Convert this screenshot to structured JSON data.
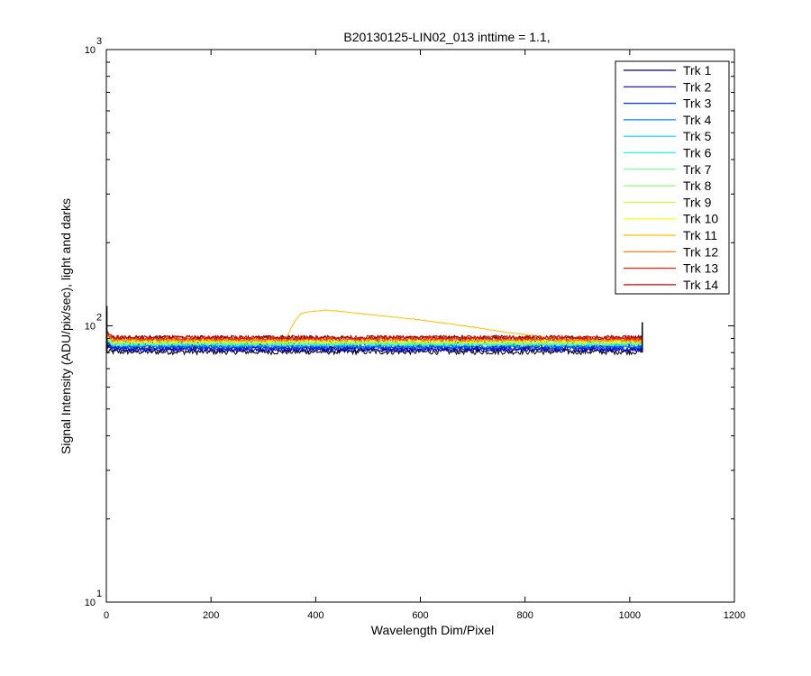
{
  "chart_data": {
    "type": "line",
    "title": "B20130125-LIN02_013 inttime = 1.1,",
    "xlabel": "Wavelength Dim/Pixel",
    "ylabel": "Signal Intensity (ADU/pix/sec), light and darks",
    "xlim": [
      0,
      1200
    ],
    "ylim": [
      10,
      1000
    ],
    "yscale": "log",
    "x_ticks": [
      0,
      200,
      400,
      600,
      800,
      1000,
      1200
    ],
    "x_tick_labels": [
      "0",
      "200",
      "400",
      "600",
      "800",
      "1000",
      "1200"
    ],
    "y_ticks": [
      10,
      100,
      1000
    ],
    "y_tick_labels": [
      {
        "base": "10",
        "exp": "1"
      },
      {
        "base": "10",
        "exp": "2"
      },
      {
        "base": "10",
        "exp": "3"
      }
    ],
    "grid": false,
    "legend_position": "top-right",
    "x_range": [
      1,
      1024
    ],
    "series": [
      {
        "name": "Trk 1",
        "color": "#00008f",
        "level": 81.5
      },
      {
        "name": "Trk 2",
        "color": "#0000df",
        "level": 82.5
      },
      {
        "name": "Trk 3",
        "color": "#0030ff",
        "level": 83.5
      },
      {
        "name": "Trk 4",
        "color": "#0080ff",
        "level": 84.5
      },
      {
        "name": "Trk 5",
        "color": "#00cfff",
        "level": 85.5
      },
      {
        "name": "Trk 6",
        "color": "#20ffdf",
        "level": 86.0
      },
      {
        "name": "Trk 7",
        "color": "#70ff8f",
        "level": 86.5
      },
      {
        "name": "Trk 8",
        "color": "#8fff70",
        "level": 87.0
      },
      {
        "name": "Trk 9",
        "color": "#cfff30",
        "level": 87.5
      },
      {
        "name": "Trk 10",
        "color": "#ffff00",
        "level": 88.0
      },
      {
        "name": "Trk 11",
        "color": "#ffbf00",
        "level": 88.5,
        "hump": [
          [
            340,
            88.5
          ],
          [
            350,
            95
          ],
          [
            355,
            100
          ],
          [
            370,
            110
          ],
          [
            380,
            112
          ],
          [
            420,
            114
          ],
          [
            500,
            110
          ],
          [
            600,
            105
          ],
          [
            700,
            99
          ],
          [
            760,
            95
          ],
          [
            820,
            92
          ],
          [
            870,
            89.5
          ],
          [
            880,
            88.5
          ]
        ]
      },
      {
        "name": "Trk 12",
        "color": "#ff7000",
        "level": 89.0
      },
      {
        "name": "Trk 13",
        "color": "#ff2000",
        "level": 90.0
      },
      {
        "name": "Trk 14",
        "color": "#df0000",
        "level": 91.0
      }
    ],
    "dark_band": {
      "color": "#000000",
      "low": 80.5,
      "high": 90.5
    }
  }
}
